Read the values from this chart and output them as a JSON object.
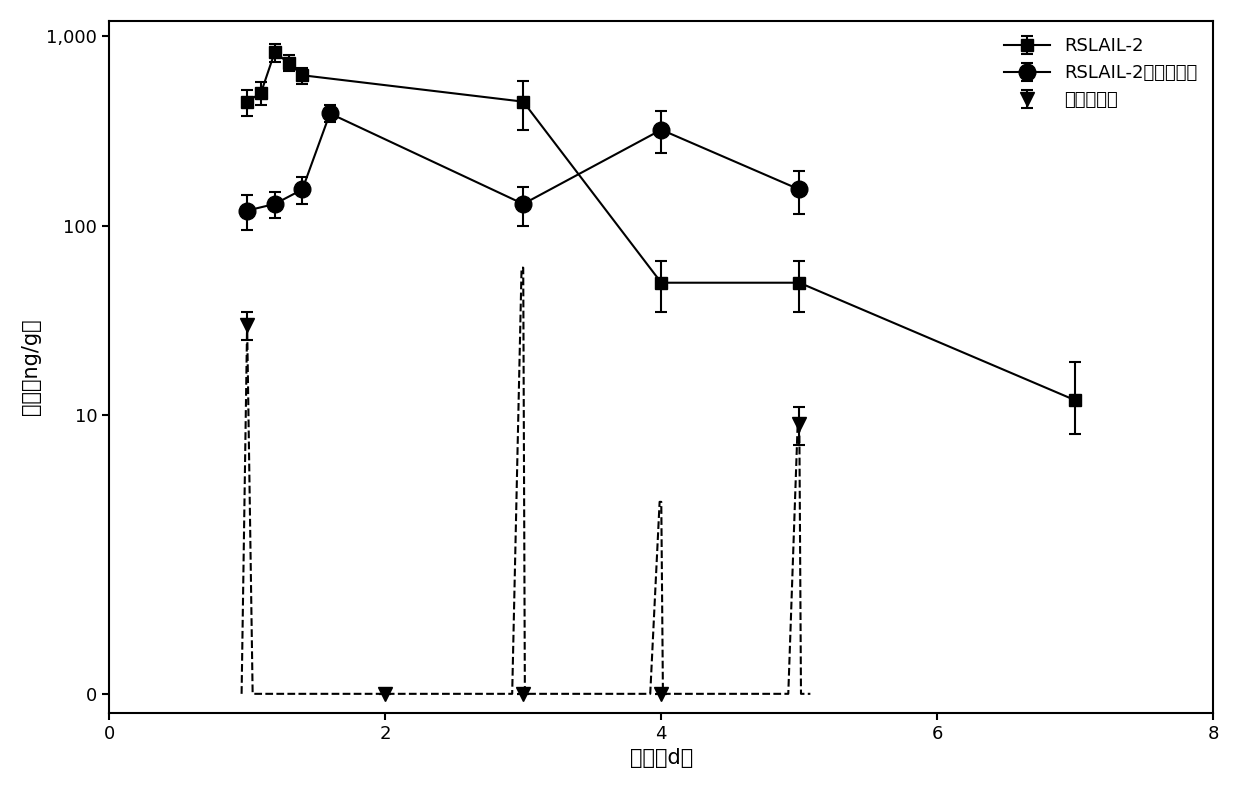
{
  "xlabel": "时间（d）",
  "ylabel": "浓度（ng/g）",
  "xlim": [
    0,
    8
  ],
  "xticks": [
    0,
    2,
    4,
    6,
    8
  ],
  "background_color": "#ffffff",
  "series1_label": "RSLAIL-2",
  "series1_x": [
    1.0,
    1.1,
    1.2,
    1.3,
    1.4,
    3.0,
    4.0,
    5.0,
    7.0
  ],
  "series1_y": [
    450,
    500,
    820,
    720,
    620,
    450,
    50,
    50,
    12
  ],
  "series1_yerr_low": [
    70,
    70,
    90,
    70,
    60,
    130,
    15,
    15,
    4
  ],
  "series1_yerr_high": [
    70,
    70,
    90,
    70,
    60,
    130,
    15,
    15,
    7
  ],
  "series1_color": "#000000",
  "series1_marker": "s",
  "series1_markersize": 9,
  "series2_label": "RSLAIL-2活性缀合物",
  "series2_x": [
    1.0,
    1.2,
    1.4,
    1.6,
    3.0,
    4.0,
    5.0
  ],
  "series2_y": [
    120,
    130,
    155,
    390,
    130,
    320,
    155
  ],
  "series2_yerr_low": [
    25,
    20,
    25,
    40,
    30,
    80,
    40
  ],
  "series2_yerr_high": [
    25,
    20,
    25,
    40,
    30,
    80,
    40
  ],
  "series2_color": "#000000",
  "series2_marker": "o",
  "series2_markersize": 12,
  "series3_label": "阿地白介素",
  "series3_color": "#000000",
  "series3_marker": "v",
  "series3_markersize": 10
}
